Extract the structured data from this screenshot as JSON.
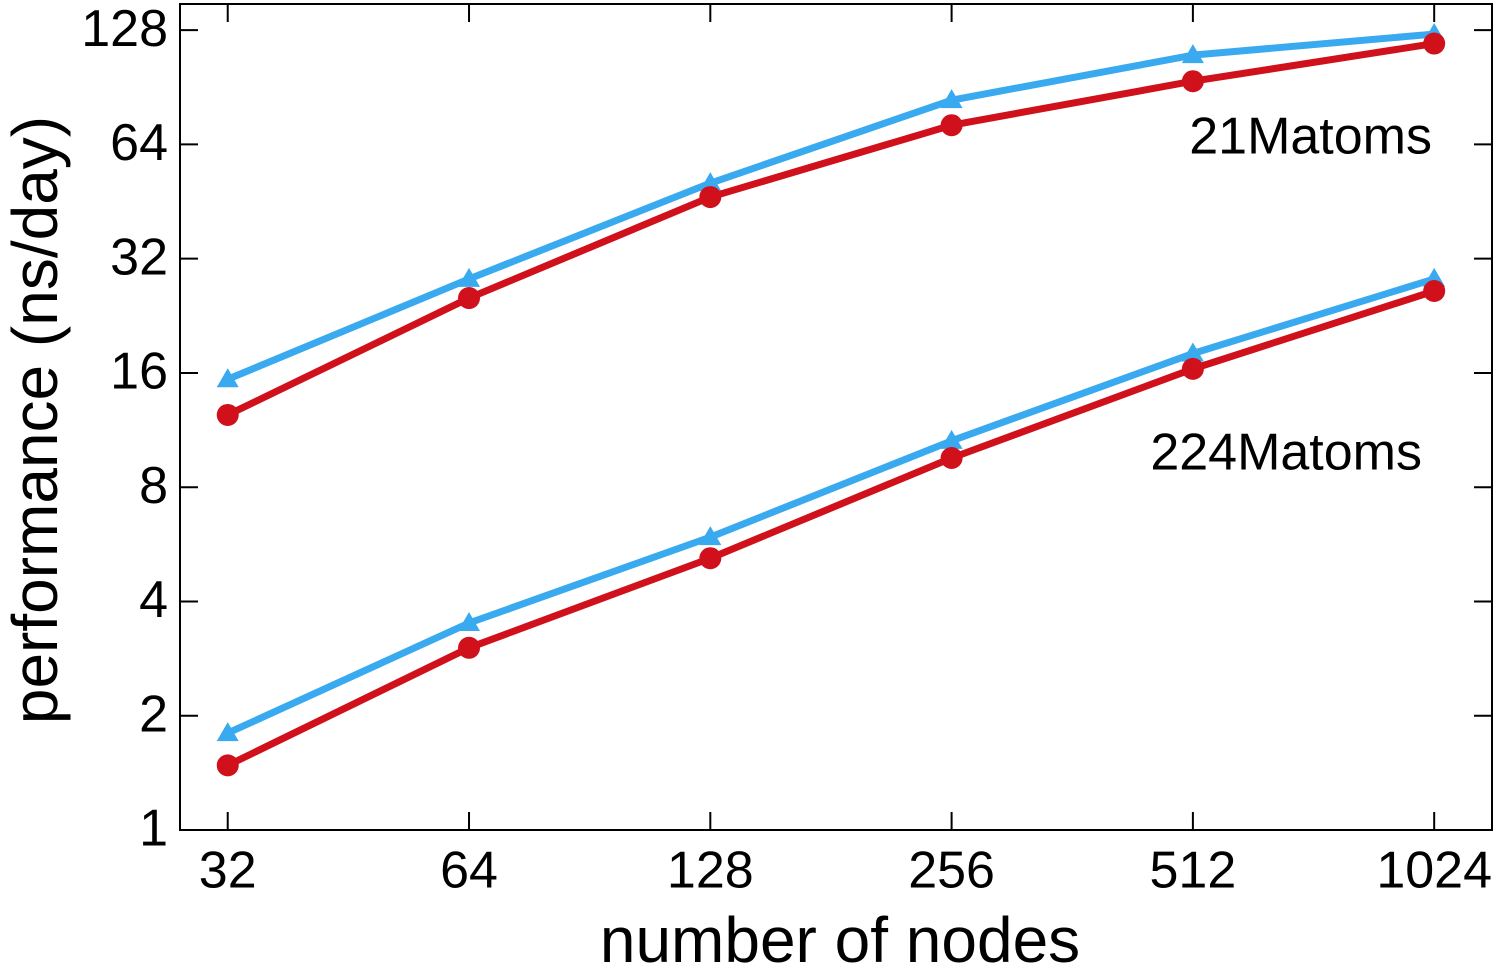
{
  "chart_data": {
    "type": "line",
    "xlabel": "number of nodes",
    "ylabel": "performance (ns/day)",
    "xscale": "log",
    "yscale": "log",
    "x": [
      32,
      64,
      128,
      256,
      512,
      1024
    ],
    "xlim": [
      27.9,
      1209
    ],
    "xticks": [
      32,
      64,
      128,
      256,
      512,
      1024
    ],
    "ylim": [
      1,
      150
    ],
    "yticks": [
      1,
      2,
      4,
      8,
      16,
      32,
      64,
      128
    ],
    "series": [
      {
        "color": "#3aaaf0",
        "marker": "triangle",
        "values": [
          15.4,
          28.3,
          50.6,
          83.7,
          110,
          125
        ]
      },
      {
        "color": "#d0101a",
        "marker": "circle",
        "values": [
          12.4,
          25.2,
          46.5,
          71.9,
          93.9,
          118
        ]
      },
      {
        "color": "#3aaaf0",
        "marker": "triangle",
        "values": [
          1.8,
          3.51,
          5.91,
          10.6,
          18.0,
          28.3
        ]
      },
      {
        "color": "#d0101a",
        "marker": "circle",
        "values": [
          1.48,
          3.02,
          5.2,
          9.55,
          16.4,
          26.3
        ]
      }
    ],
    "annotations": [
      "21Matoms",
      "224Matoms"
    ]
  }
}
